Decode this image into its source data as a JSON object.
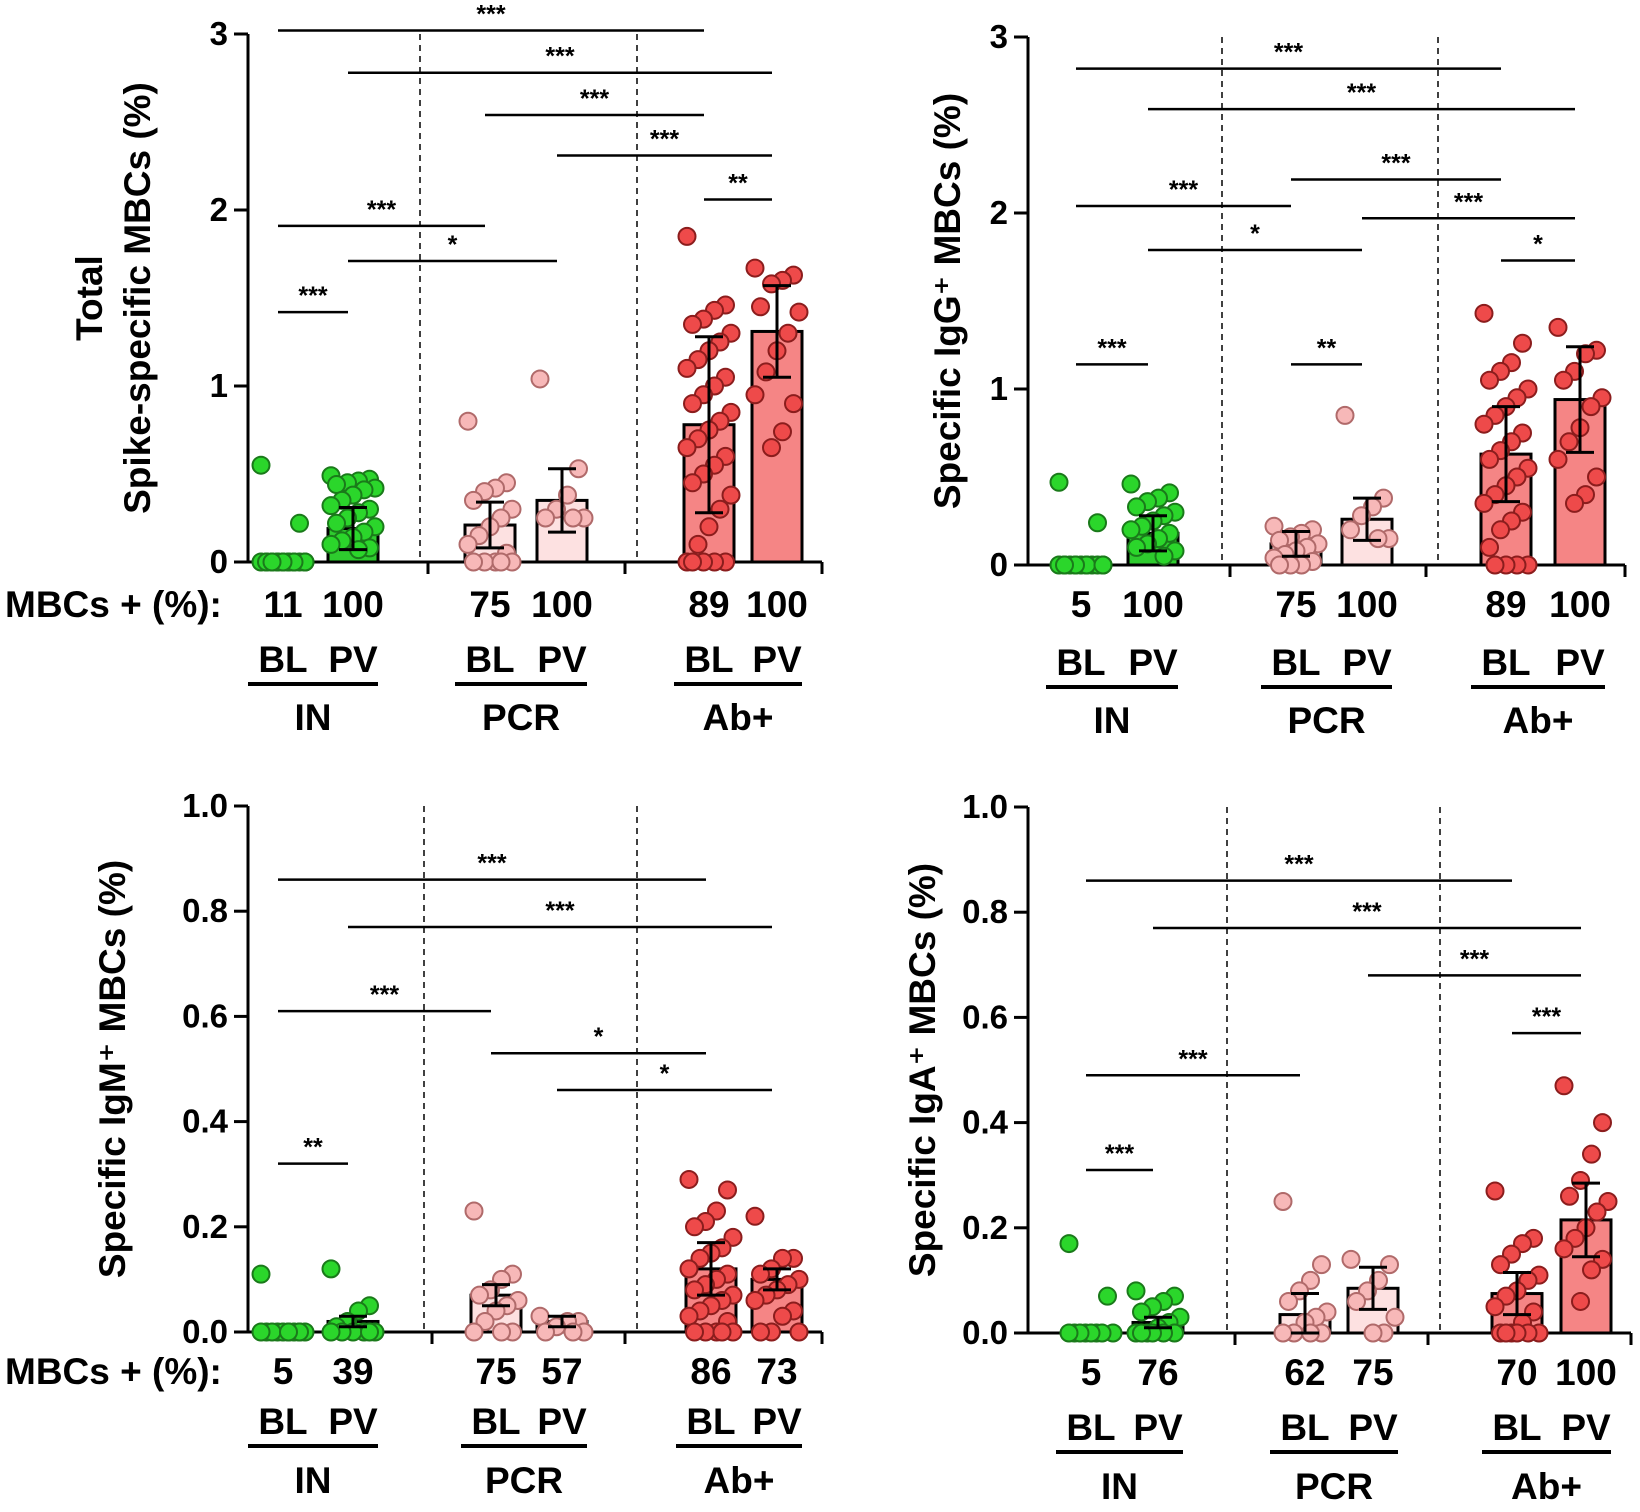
{
  "figure": {
    "row_caption": "MBCs + (%):",
    "colors": {
      "IN": {
        "fill": "#2bd62b",
        "bar": "#2ecc2e",
        "stroke": "#1a7a1a"
      },
      "PCR": {
        "fill": "#f7b8b8",
        "bar": "#fde1e1",
        "stroke": "#b06a6a"
      },
      "Ab+": {
        "fill": "#ee4a4a",
        "bar": "#f58585",
        "stroke": "#8b1d1d"
      }
    }
  },
  "chart_data": [
    {
      "type": "bar",
      "id": "total",
      "ylabel": [
        "Total",
        "Spike-specific MBCs (%)"
      ],
      "ylim": [
        0,
        3
      ],
      "yticks": [
        "0",
        "1",
        "2",
        "3"
      ],
      "ytick_values": [
        0,
        1,
        2,
        3
      ],
      "groups": [
        {
          "name": "IN",
          "color": "IN",
          "timepoints": [
            {
              "label": "BL",
              "pct_positive": "11",
              "mean": 0.02,
              "sd": 0.0,
              "points": [
                0.55,
                0.22,
                0.0,
                0.0,
                0.0,
                0.0,
                0.0,
                0.0,
                0.0,
                0.0,
                0.0,
                0.0,
                0.0,
                0.0,
                0.0,
                0.0,
                0.0,
                0.0
              ]
            },
            {
              "label": "PV",
              "pct_positive": "100",
              "mean": 0.19,
              "sd": 0.12,
              "points": [
                0.49,
                0.47,
                0.46,
                0.45,
                0.44,
                0.42,
                0.41,
                0.38,
                0.35,
                0.32,
                0.3,
                0.28,
                0.25,
                0.22,
                0.2,
                0.17,
                0.14,
                0.12,
                0.1,
                0.08,
                0.07
              ]
            }
          ]
        },
        {
          "name": "PCR",
          "color": "PCR",
          "timepoints": [
            {
              "label": "BL",
              "pct_positive": "75",
              "mean": 0.21,
              "sd": 0.13,
              "points": [
                0.8,
                0.45,
                0.42,
                0.4,
                0.35,
                0.3,
                0.25,
                0.2,
                0.15,
                0.1,
                0.05,
                0.0,
                0.0,
                0.0,
                0.0,
                0.0
              ]
            },
            {
              "label": "PV",
              "pct_positive": "100",
              "mean": 0.35,
              "sd": 0.18,
              "points": [
                1.04,
                0.53,
                0.38,
                0.3,
                0.25,
                0.25,
                0.25
              ]
            }
          ]
        },
        {
          "name": "Ab+",
          "color": "Ab+",
          "timepoints": [
            {
              "label": "BL",
              "pct_positive": "89",
              "mean": 0.78,
              "sd": 0.5,
              "points": [
                1.85,
                1.46,
                1.43,
                1.38,
                1.35,
                1.3,
                1.25,
                1.2,
                1.15,
                1.1,
                1.05,
                1.0,
                0.95,
                0.9,
                0.85,
                0.8,
                0.75,
                0.7,
                0.65,
                0.6,
                0.55,
                0.5,
                0.45,
                0.38,
                0.3,
                0.2,
                0.1,
                0.0,
                0.0,
                0.0,
                0.0,
                0.0
              ]
            },
            {
              "label": "PV",
              "pct_positive": "100",
              "mean": 1.31,
              "sd": 0.26,
              "points": [
                1.67,
                1.63,
                1.6,
                1.58,
                1.45,
                1.42,
                1.3,
                1.2,
                1.08,
                0.95,
                0.9,
                0.74,
                0.65
              ]
            }
          ]
        }
      ],
      "significance": [
        {
          "label": "***",
          "from": 0,
          "to": 4,
          "y": 3.02
        },
        {
          "label": "***",
          "from": 1,
          "to": 5,
          "y": 2.78
        },
        {
          "label": "***",
          "from": 2,
          "to": 4,
          "y": 2.54
        },
        {
          "label": "***",
          "from": 3,
          "to": 5,
          "y": 2.31
        },
        {
          "label": "**",
          "from": 4,
          "to": 5,
          "y": 2.06
        },
        {
          "label": "***",
          "from": 0,
          "to": 2,
          "y": 1.91
        },
        {
          "label": "*",
          "from": 1,
          "to": 3,
          "y": 1.71
        },
        {
          "label": "***",
          "from": 0,
          "to": 1,
          "y": 1.42
        }
      ]
    },
    {
      "type": "bar",
      "id": "igg",
      "ylabel": [
        "Specific IgG⁺ MBCs (%)"
      ],
      "ylim": [
        0,
        3
      ],
      "yticks": [
        "0",
        "1",
        "2",
        "3"
      ],
      "ytick_values": [
        0,
        1,
        2,
        3
      ],
      "groups": [
        {
          "name": "IN",
          "color": "IN",
          "timepoints": [
            {
              "label": "BL",
              "pct_positive": "5",
              "mean": 0.01,
              "sd": 0.0,
              "points": [
                0.47,
                0.24,
                0.0,
                0.0,
                0.0,
                0.0,
                0.0,
                0.0,
                0.0,
                0.0,
                0.0,
                0.0,
                0.0,
                0.0,
                0.0
              ]
            },
            {
              "label": "PV",
              "pct_positive": "100",
              "mean": 0.18,
              "sd": 0.1,
              "points": [
                0.46,
                0.41,
                0.38,
                0.36,
                0.33,
                0.3,
                0.28,
                0.25,
                0.22,
                0.2,
                0.18,
                0.15,
                0.12,
                0.1,
                0.08,
                0.05
              ]
            }
          ]
        },
        {
          "name": "PCR",
          "color": "PCR",
          "timepoints": [
            {
              "label": "BL",
              "pct_positive": "75",
              "mean": 0.12,
              "sd": 0.07,
              "points": [
                0.22,
                0.2,
                0.18,
                0.16,
                0.14,
                0.12,
                0.1,
                0.08,
                0.06,
                0.04,
                0.02,
                0.0,
                0.0,
                0.0
              ]
            },
            {
              "label": "PV",
              "pct_positive": "100",
              "mean": 0.26,
              "sd": 0.12,
              "points": [
                0.85,
                0.38,
                0.33,
                0.28,
                0.2,
                0.15,
                0.15
              ]
            }
          ]
        },
        {
          "name": "Ab+",
          "color": "Ab+",
          "timepoints": [
            {
              "label": "BL",
              "pct_positive": "89",
              "mean": 0.63,
              "sd": 0.27,
              "points": [
                1.43,
                1.26,
                1.15,
                1.1,
                1.05,
                1.0,
                0.95,
                0.9,
                0.85,
                0.8,
                0.75,
                0.7,
                0.65,
                0.6,
                0.55,
                0.5,
                0.45,
                0.4,
                0.35,
                0.3,
                0.25,
                0.2,
                0.1,
                0.0,
                0.0,
                0.0,
                0.0
              ]
            },
            {
              "label": "PV",
              "pct_positive": "100",
              "mean": 0.94,
              "sd": 0.3,
              "points": [
                1.35,
                1.22,
                1.2,
                1.1,
                1.05,
                0.95,
                0.9,
                0.78,
                0.7,
                0.6,
                0.5,
                0.4,
                0.35
              ]
            }
          ]
        }
      ],
      "significance": [
        {
          "label": "***",
          "from": 0,
          "to": 4,
          "y": 2.82
        },
        {
          "label": "***",
          "from": 1,
          "to": 5,
          "y": 2.59
        },
        {
          "label": "***",
          "from": 2,
          "to": 4,
          "y": 2.19
        },
        {
          "label": "***",
          "from": 0,
          "to": 2,
          "y": 2.04
        },
        {
          "label": "***",
          "from": 3,
          "to": 5,
          "y": 1.97
        },
        {
          "label": "*",
          "from": 4,
          "to": 5,
          "y": 1.73
        },
        {
          "label": "*",
          "from": 1,
          "to": 3,
          "y": 1.79
        },
        {
          "label": "**",
          "from": 2,
          "to": 3,
          "y": 1.14
        },
        {
          "label": "***",
          "from": 0,
          "to": 1,
          "y": 1.14
        }
      ]
    },
    {
      "type": "bar",
      "id": "igm",
      "ylabel": [
        "Specific IgM⁺ MBCs (%)"
      ],
      "ylim": [
        0,
        1.0
      ],
      "yticks": [
        "0.0",
        "0.2",
        "0.4",
        "0.6",
        "0.8",
        "1.0"
      ],
      "ytick_values": [
        0,
        0.2,
        0.4,
        0.6,
        0.8,
        1.0
      ],
      "groups": [
        {
          "name": "IN",
          "color": "IN",
          "timepoints": [
            {
              "label": "BL",
              "pct_positive": "5",
              "mean": 0.005,
              "sd": 0.0,
              "points": [
                0.11,
                0.0,
                0.0,
                0.0,
                0.0,
                0.0,
                0.0,
                0.0,
                0.0,
                0.0,
                0.0,
                0.0
              ]
            },
            {
              "label": "PV",
              "pct_positive": "39",
              "mean": 0.02,
              "sd": 0.01,
              "points": [
                0.12,
                0.05,
                0.04,
                0.02,
                0.01,
                0.0,
                0.0,
                0.0,
                0.0,
                0.0,
                0.0
              ]
            }
          ]
        },
        {
          "name": "PCR",
          "color": "PCR",
          "timepoints": [
            {
              "label": "BL",
              "pct_positive": "75",
              "mean": 0.07,
              "sd": 0.02,
              "points": [
                0.23,
                0.11,
                0.1,
                0.08,
                0.07,
                0.06,
                0.05,
                0.04,
                0.02,
                0.0,
                0.0,
                0.0
              ]
            },
            {
              "label": "PV",
              "pct_positive": "57",
              "mean": 0.02,
              "sd": 0.01,
              "points": [
                0.03,
                0.02,
                0.02,
                0.01,
                0.0,
                0.0,
                0.0
              ]
            }
          ]
        },
        {
          "name": "Ab+",
          "color": "Ab+",
          "timepoints": [
            {
              "label": "BL",
              "pct_positive": "86",
              "mean": 0.12,
              "sd": 0.05,
              "points": [
                0.29,
                0.27,
                0.23,
                0.21,
                0.2,
                0.18,
                0.16,
                0.15,
                0.14,
                0.12,
                0.11,
                0.1,
                0.09,
                0.08,
                0.07,
                0.06,
                0.05,
                0.04,
                0.03,
                0.02,
                0.0,
                0.0,
                0.0,
                0.0,
                0.0
              ]
            },
            {
              "label": "PV",
              "pct_positive": "73",
              "mean": 0.1,
              "sd": 0.02,
              "points": [
                0.22,
                0.14,
                0.14,
                0.12,
                0.11,
                0.1,
                0.09,
                0.08,
                0.07,
                0.06,
                0.04,
                0.03,
                0.0,
                0.0,
                0.0
              ]
            }
          ]
        }
      ],
      "significance": [
        {
          "label": "***",
          "from": 0,
          "to": 4,
          "y": 0.86
        },
        {
          "label": "***",
          "from": 1,
          "to": 5,
          "y": 0.77
        },
        {
          "label": "***",
          "from": 0,
          "to": 2,
          "y": 0.61
        },
        {
          "label": "*",
          "from": 2,
          "to": 4,
          "y": 0.53
        },
        {
          "label": "*",
          "from": 3,
          "to": 5,
          "y": 0.46
        },
        {
          "label": "**",
          "from": 0,
          "to": 1,
          "y": 0.32
        }
      ]
    },
    {
      "type": "bar",
      "id": "iga",
      "ylabel": [
        "Specific IgA⁺ MBCs (%)"
      ],
      "ylim": [
        0,
        1.0
      ],
      "yticks": [
        "0.0",
        "0.2",
        "0.4",
        "0.6",
        "0.8",
        "1.0"
      ],
      "ytick_values": [
        0,
        0.2,
        0.4,
        0.6,
        0.8,
        1.0
      ],
      "groups": [
        {
          "name": "IN",
          "color": "IN",
          "timepoints": [
            {
              "label": "BL",
              "pct_positive": "5",
              "mean": 0.005,
              "sd": 0.0,
              "points": [
                0.17,
                0.07,
                0.0,
                0.0,
                0.0,
                0.0,
                0.0,
                0.0,
                0.0,
                0.0
              ]
            },
            {
              "label": "PV",
              "pct_positive": "76",
              "mean": 0.02,
              "sd": 0.01,
              "points": [
                0.08,
                0.07,
                0.06,
                0.05,
                0.04,
                0.03,
                0.02,
                0.01,
                0.0,
                0.0,
                0.0,
                0.0,
                0.0,
                0.0
              ]
            }
          ]
        },
        {
          "name": "PCR",
          "color": "PCR",
          "timepoints": [
            {
              "label": "BL",
              "pct_positive": "62",
              "mean": 0.035,
              "sd": 0.04,
              "points": [
                0.25,
                0.13,
                0.1,
                0.08,
                0.06,
                0.04,
                0.03,
                0.02,
                0.0,
                0.0,
                0.0,
                0.0
              ]
            },
            {
              "label": "PV",
              "pct_positive": "75",
              "mean": 0.085,
              "sd": 0.04,
              "points": [
                0.14,
                0.13,
                0.1,
                0.08,
                0.06,
                0.03,
                0.0,
                0.0
              ]
            }
          ]
        },
        {
          "name": "Ab+",
          "color": "Ab+",
          "timepoints": [
            {
              "label": "BL",
              "pct_positive": "70",
              "mean": 0.075,
              "sd": 0.04,
              "points": [
                0.27,
                0.18,
                0.17,
                0.15,
                0.13,
                0.11,
                0.1,
                0.08,
                0.07,
                0.05,
                0.04,
                0.02,
                0.0,
                0.0,
                0.0,
                0.0,
                0.0,
                0.0
              ]
            },
            {
              "label": "PV",
              "pct_positive": "100",
              "mean": 0.215,
              "sd": 0.07,
              "points": [
                0.47,
                0.4,
                0.34,
                0.29,
                0.26,
                0.25,
                0.23,
                0.2,
                0.18,
                0.16,
                0.14,
                0.12,
                0.06
              ]
            }
          ]
        }
      ],
      "significance": [
        {
          "label": "***",
          "from": 0,
          "to": 4,
          "y": 0.86
        },
        {
          "label": "***",
          "from": 1,
          "to": 5,
          "y": 0.77
        },
        {
          "label": "***",
          "from": 3,
          "to": 5,
          "y": 0.68
        },
        {
          "label": "***",
          "from": 4,
          "to": 5,
          "y": 0.57
        },
        {
          "label": "***",
          "from": 0,
          "to": 2,
          "y": 0.49
        },
        {
          "label": "***",
          "from": 0,
          "to": 1,
          "y": 0.31
        }
      ]
    }
  ]
}
